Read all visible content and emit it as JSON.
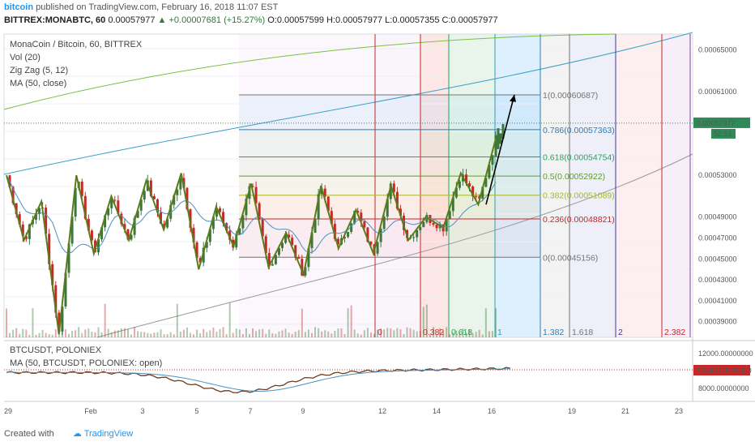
{
  "header": {
    "brand": "bitcoin",
    "published": "published on TradingView.com, February 16, 2018 11:07 EST",
    "symbol": "BITTREX:MONABTC, 60",
    "price": "0.00057977",
    "change": "+0.00007681 (+15.27%)",
    "ohlc": "O:0.00057599 H:0.00057977 L:0.00057355 C:0.00057977"
  },
  "main_legend": [
    "MonaCoin / Bitcoin, 60, BITTREX",
    "Vol (20)",
    "Zig Zag (5, 12)",
    "MA (50, close)"
  ],
  "sub_legend": [
    "BTCUSDT, POLONIEX",
    "MA (50, BTCUSDT, POLONIEX: open)"
  ],
  "footer": {
    "created": "Created with",
    "brand": "TradingView"
  },
  "price_label": {
    "value": "0.00057977",
    "countdown": "52:51"
  },
  "btc_label": "10040.00000000",
  "colors": {
    "up": "#3c763d",
    "down": "#c62828",
    "ma": "#4a90c2",
    "zigzag": "#5a7d1a",
    "arrow": "#000000"
  },
  "chart_data": {
    "type": "candlestick",
    "x_ticks": [
      "29",
      "Feb",
      "3",
      "5",
      "7",
      "9",
      "12",
      "14",
      "16",
      "19",
      "21",
      "23"
    ],
    "y_ticks": [
      "0.00065000",
      "0.00061000",
      "0.00053000",
      "0.00049000",
      "0.00047000",
      "0.00045000",
      "0.00043000",
      "0.00041000",
      "0.00039000"
    ],
    "ylim": [
      0.000375,
      0.000665
    ],
    "fib_retracement": [
      {
        "level": "1",
        "price": "0.00060687",
        "color": "#757575"
      },
      {
        "level": "0.786",
        "price": "0.00057363",
        "color": "#2a7fb8"
      },
      {
        "level": "0.618",
        "price": "0.00054754",
        "color": "#26a65b"
      },
      {
        "level": "0.5",
        "price": "0.00052922",
        "color": "#5c9c2b"
      },
      {
        "level": "0.382",
        "price": "0.00051089",
        "color": "#a8b82a"
      },
      {
        "level": "0.236",
        "price": "0.00048821",
        "color": "#c62828"
      },
      {
        "level": "0",
        "price": "0.00045156",
        "color": "#757575"
      }
    ],
    "fib_time_zones": [
      {
        "label": "0",
        "color": "#c62828"
      },
      {
        "label": "0.382",
        "color": "#c62828"
      },
      {
        "label": "0.618",
        "color": "#26a65b"
      },
      {
        "label": "1",
        "color": "#2a9fb8"
      },
      {
        "label": "1.382",
        "color": "#2a7fb8"
      },
      {
        "label": "1.618",
        "color": "#757575"
      },
      {
        "label": "2",
        "color": "#3a3aa0"
      },
      {
        "label": "2.382",
        "color": "#c62828"
      },
      {
        "label": "",
        "color": "#8a3aa8"
      }
    ],
    "zigzag": [
      [
        0.00053,
        0.000468,
        0.000505,
        0.000378,
        0.00053,
        0.000455,
        0.00051,
        0.000468,
        0.000525,
        0.000478,
        0.000532,
        0.00044,
        0.0005,
        0.000462,
        0.000522,
        0.000442,
        0.000475,
        0.000435,
        0.00052,
        0.00046,
        0.000497,
        0.000455,
        0.00052,
        0.000468,
        0.00049,
        0.00048,
        0.000532,
        0.000502,
        0.000565
      ]
    ],
    "btc_sub": {
      "y_ticks": [
        "12000.00000000",
        "8000.00000000"
      ],
      "last": "10040.00000000"
    }
  }
}
